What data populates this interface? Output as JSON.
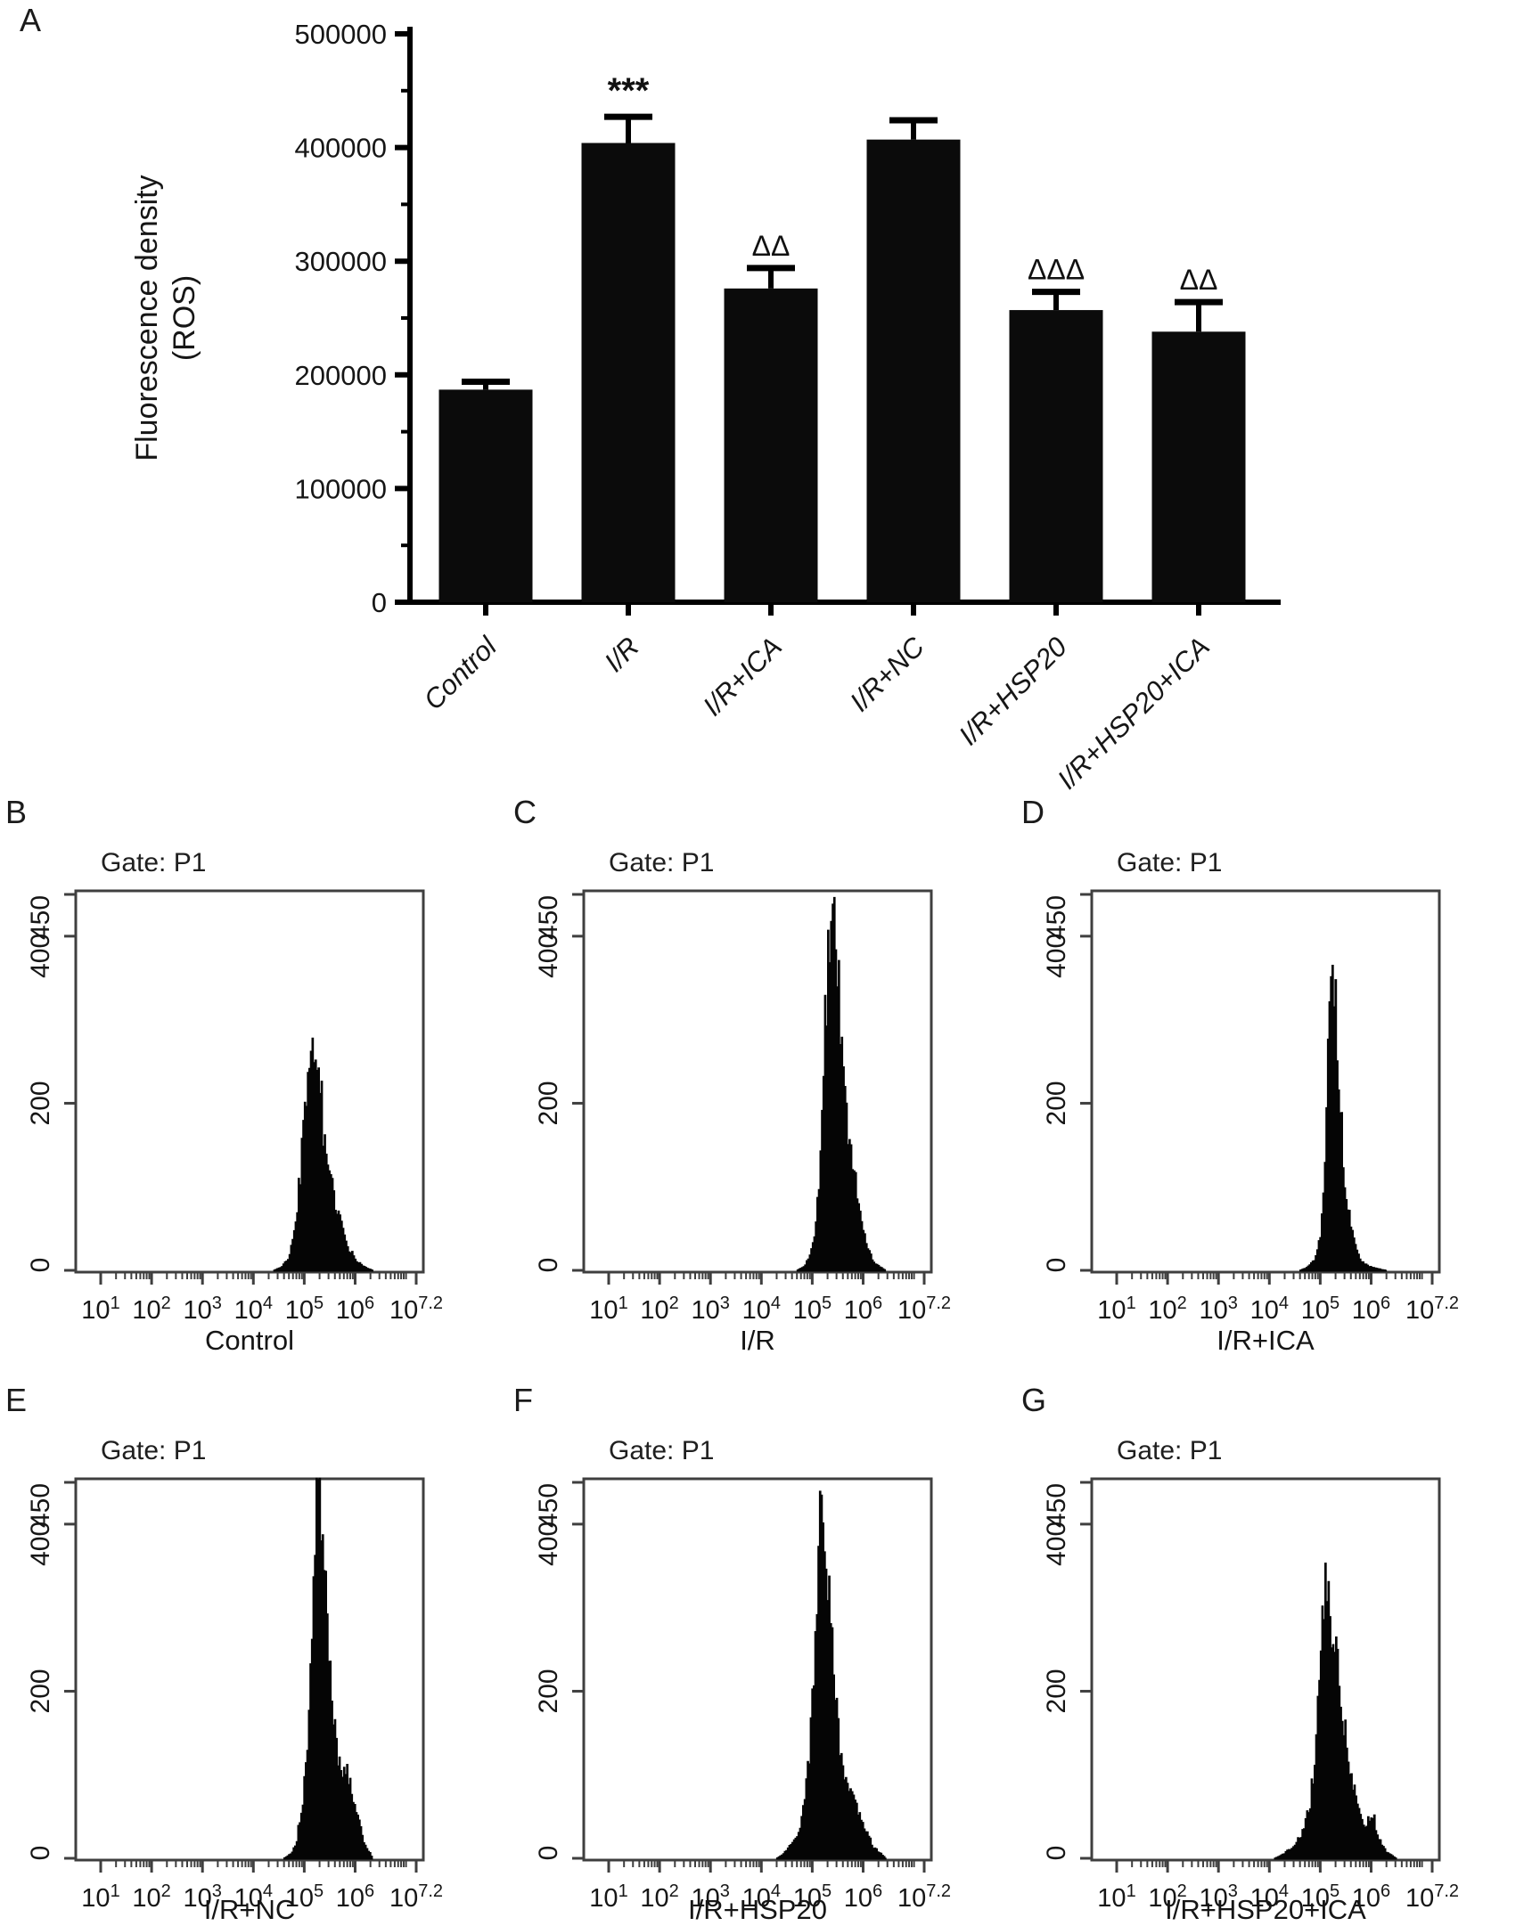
{
  "page": {
    "background": "#ffffff",
    "accent": "#0a0a0a",
    "frame_color": "#3f3f3f"
  },
  "panels": {
    "A": {
      "letter": "A"
    },
    "B": {
      "letter": "B"
    },
    "C": {
      "letter": "C"
    },
    "D": {
      "letter": "D"
    },
    "E": {
      "letter": "E"
    },
    "F": {
      "letter": "F"
    },
    "G": {
      "letter": "G"
    }
  },
  "chart_data": [
    {
      "panel": "A",
      "type": "bar",
      "ylabel_lines": [
        "Fluorescence density",
        "(ROS)"
      ],
      "categories": [
        "Control",
        "I/R",
        "I/R+ICA",
        "I/R+NC",
        "I/R+HSP20",
        "I/R+HSP20+ICA"
      ],
      "values": [
        187000,
        404000,
        276000,
        407000,
        257000,
        238000
      ],
      "errors": [
        7000,
        23000,
        18000,
        17000,
        16000,
        26000
      ],
      "annotations": [
        "",
        "***",
        "ΔΔ",
        "",
        "ΔΔΔ",
        "ΔΔ"
      ],
      "ylim": [
        0,
        500000
      ],
      "ytick_step": 100000,
      "yminor_step": 50000,
      "ytick_labels": [
        "0",
        "100000",
        "200000",
        "300000",
        "400000",
        "500000"
      ],
      "bar_color": "#0b0b0b",
      "axis_color": "#000000",
      "grid": false,
      "legend": "none"
    },
    {
      "panel": "B",
      "type": "histogram",
      "gate": "Gate: P1",
      "xlabel": "Control",
      "ymax": 450,
      "yticks": [
        0,
        200,
        400
      ],
      "ytop_label": "450",
      "xlog_min": 1,
      "xlog_max": 7.2,
      "xtick_exponents": [
        "1",
        "2",
        "3",
        "4",
        "5",
        "6",
        "7.2"
      ],
      "seed": 3,
      "envelope": [
        [
          4.4,
          0
        ],
        [
          4.55,
          4
        ],
        [
          4.7,
          15
        ],
        [
          4.8,
          40
        ],
        [
          4.9,
          95
        ],
        [
          5.0,
          185
        ],
        [
          5.05,
          225
        ],
        [
          5.1,
          245
        ],
        [
          5.15,
          270
        ],
        [
          5.2,
          235
        ],
        [
          5.25,
          245
        ],
        [
          5.3,
          210
        ],
        [
          5.35,
          185
        ],
        [
          5.4,
          150
        ],
        [
          5.5,
          115
        ],
        [
          5.6,
          85
        ],
        [
          5.7,
          60
        ],
        [
          5.8,
          38
        ],
        [
          5.9,
          22
        ],
        [
          6.0,
          14
        ],
        [
          6.1,
          8
        ],
        [
          6.2,
          4
        ],
        [
          6.35,
          0
        ]
      ]
    },
    {
      "panel": "C",
      "type": "histogram",
      "gate": "Gate: P1",
      "xlabel": "I/R",
      "ymax": 450,
      "yticks": [
        0,
        200,
        400
      ],
      "ytop_label": "450",
      "xlog_min": 1,
      "xlog_max": 7.2,
      "xtick_exponents": [
        "1",
        "2",
        "3",
        "4",
        "5",
        "6",
        "7.2"
      ],
      "seed": 7,
      "envelope": [
        [
          4.7,
          0
        ],
        [
          4.85,
          5
        ],
        [
          4.95,
          18
        ],
        [
          5.05,
          45
        ],
        [
          5.15,
          120
        ],
        [
          5.25,
          260
        ],
        [
          5.3,
          345
        ],
        [
          5.35,
          420
        ],
        [
          5.4,
          445
        ],
        [
          5.45,
          415
        ],
        [
          5.5,
          370
        ],
        [
          5.55,
          300
        ],
        [
          5.6,
          240
        ],
        [
          5.65,
          215
        ],
        [
          5.7,
          170
        ],
        [
          5.8,
          115
        ],
        [
          5.9,
          80
        ],
        [
          6.0,
          50
        ],
        [
          6.1,
          25
        ],
        [
          6.2,
          10
        ],
        [
          6.35,
          4
        ],
        [
          6.45,
          0
        ]
      ]
    },
    {
      "panel": "D",
      "type": "histogram",
      "gate": "Gate: P1",
      "xlabel": "I/R+ICA",
      "ymax": 450,
      "yticks": [
        0,
        200,
        400
      ],
      "ytop_label": "450",
      "xlog_min": 1,
      "xlog_max": 7.2,
      "xtick_exponents": [
        "1",
        "2",
        "3",
        "4",
        "5",
        "6",
        "7.2"
      ],
      "seed": 13,
      "envelope": [
        [
          4.6,
          0
        ],
        [
          4.75,
          4
        ],
        [
          4.9,
          14
        ],
        [
          5.0,
          40
        ],
        [
          5.05,
          80
        ],
        [
          5.1,
          140
        ],
        [
          5.15,
          280
        ],
        [
          5.2,
          405
        ],
        [
          5.25,
          370
        ],
        [
          5.3,
          320
        ],
        [
          5.35,
          255
        ],
        [
          5.4,
          195
        ],
        [
          5.45,
          140
        ],
        [
          5.5,
          100
        ],
        [
          5.6,
          55
        ],
        [
          5.7,
          28
        ],
        [
          5.8,
          12
        ],
        [
          5.95,
          5
        ],
        [
          6.15,
          2
        ],
        [
          6.3,
          0
        ]
      ]
    },
    {
      "panel": "E",
      "type": "histogram",
      "gate": "Gate: P1",
      "xlabel": "I/R+NC",
      "ymax": 450,
      "yticks": [
        0,
        200,
        400
      ],
      "ytop_label": "450",
      "xlog_min": 1,
      "xlog_max": 7.2,
      "xtick_exponents": [
        "1",
        "2",
        "3",
        "4",
        "5",
        "6",
        "7.2"
      ],
      "seed": 21,
      "envelope": [
        [
          4.6,
          0
        ],
        [
          4.75,
          6
        ],
        [
          4.85,
          20
        ],
        [
          4.95,
          55
        ],
        [
          5.05,
          120
        ],
        [
          5.15,
          260
        ],
        [
          5.2,
          360
        ],
        [
          5.25,
          430
        ],
        [
          5.3,
          445
        ],
        [
          5.35,
          415
        ],
        [
          5.4,
          360
        ],
        [
          5.45,
          300
        ],
        [
          5.5,
          245
        ],
        [
          5.55,
          195
        ],
        [
          5.6,
          150
        ],
        [
          5.7,
          110
        ],
        [
          5.8,
          100
        ],
        [
          5.85,
          112
        ],
        [
          5.9,
          88
        ],
        [
          6.0,
          60
        ],
        [
          6.1,
          35
        ],
        [
          6.2,
          15
        ],
        [
          6.35,
          0
        ]
      ]
    },
    {
      "panel": "F",
      "type": "histogram",
      "gate": "Gate: P1",
      "xlabel": "I/R+HSP20",
      "ymax": 450,
      "yticks": [
        0,
        200,
        400
      ],
      "ytop_label": "450",
      "xlog_min": 1,
      "xlog_max": 7.2,
      "xtick_exponents": [
        "1",
        "2",
        "3",
        "4",
        "5",
        "6",
        "7.2"
      ],
      "seed": 29,
      "envelope": [
        [
          4.3,
          0
        ],
        [
          4.45,
          6
        ],
        [
          4.6,
          16
        ],
        [
          4.75,
          35
        ],
        [
          4.85,
          65
        ],
        [
          4.95,
          130
        ],
        [
          5.05,
          240
        ],
        [
          5.1,
          320
        ],
        [
          5.15,
          410
        ],
        [
          5.2,
          450
        ],
        [
          5.25,
          400
        ],
        [
          5.3,
          330
        ],
        [
          5.35,
          300
        ],
        [
          5.4,
          245
        ],
        [
          5.45,
          200
        ],
        [
          5.5,
          160
        ],
        [
          5.6,
          110
        ],
        [
          5.7,
          85
        ],
        [
          5.8,
          70
        ],
        [
          5.85,
          75
        ],
        [
          5.9,
          55
        ],
        [
          6.0,
          42
        ],
        [
          6.1,
          28
        ],
        [
          6.2,
          14
        ],
        [
          6.35,
          6
        ],
        [
          6.45,
          0
        ]
      ]
    },
    {
      "panel": "G",
      "type": "histogram",
      "gate": "Gate: P1",
      "xlabel": "I/R+HSP20+ICA",
      "ymax": 450,
      "yticks": [
        0,
        200,
        400
      ],
      "ytop_label": "450",
      "xlog_min": 1,
      "xlog_max": 7.2,
      "xtick_exponents": [
        "1",
        "2",
        "3",
        "4",
        "5",
        "6",
        "7.2"
      ],
      "seed": 37,
      "envelope": [
        [
          4.1,
          0
        ],
        [
          4.3,
          6
        ],
        [
          4.5,
          16
        ],
        [
          4.65,
          30
        ],
        [
          4.8,
          65
        ],
        [
          4.9,
          120
        ],
        [
          5.0,
          230
        ],
        [
          5.05,
          300
        ],
        [
          5.1,
          335
        ],
        [
          5.15,
          315
        ],
        [
          5.2,
          290
        ],
        [
          5.3,
          250
        ],
        [
          5.4,
          195
        ],
        [
          5.5,
          145
        ],
        [
          5.6,
          105
        ],
        [
          5.7,
          75
        ],
        [
          5.8,
          52
        ],
        [
          5.9,
          40
        ],
        [
          6.0,
          50
        ],
        [
          6.05,
          55
        ],
        [
          6.1,
          35
        ],
        [
          6.2,
          18
        ],
        [
          6.3,
          8
        ],
        [
          6.5,
          0
        ]
      ]
    }
  ]
}
